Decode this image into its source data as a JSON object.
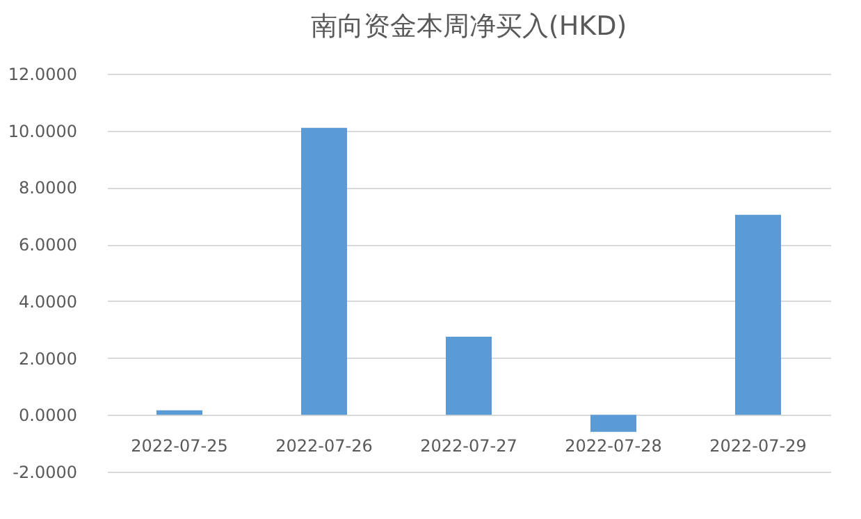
{
  "chart_data": {
    "type": "bar",
    "title": "南向资金本周净买入(HKD)",
    "categories": [
      "2022-07-25",
      "2022-07-26",
      "2022-07-27",
      "2022-07-28",
      "2022-07-29"
    ],
    "values": [
      0.16,
      10.1,
      2.75,
      -0.6,
      7.04
    ],
    "color": "#5b9bd5",
    "ylim": [
      -2,
      12
    ],
    "yticks": [
      {
        "value": -2,
        "label": "-2.0000"
      },
      {
        "value": 0,
        "label": "0.0000"
      },
      {
        "value": 2,
        "label": "2.0000"
      },
      {
        "value": 4,
        "label": "4.0000"
      },
      {
        "value": 6,
        "label": "6.0000"
      },
      {
        "value": 8,
        "label": "8.0000"
      },
      {
        "value": 10,
        "label": "10.0000"
      },
      {
        "value": 12,
        "label": "12.0000"
      }
    ],
    "grid": "y"
  }
}
